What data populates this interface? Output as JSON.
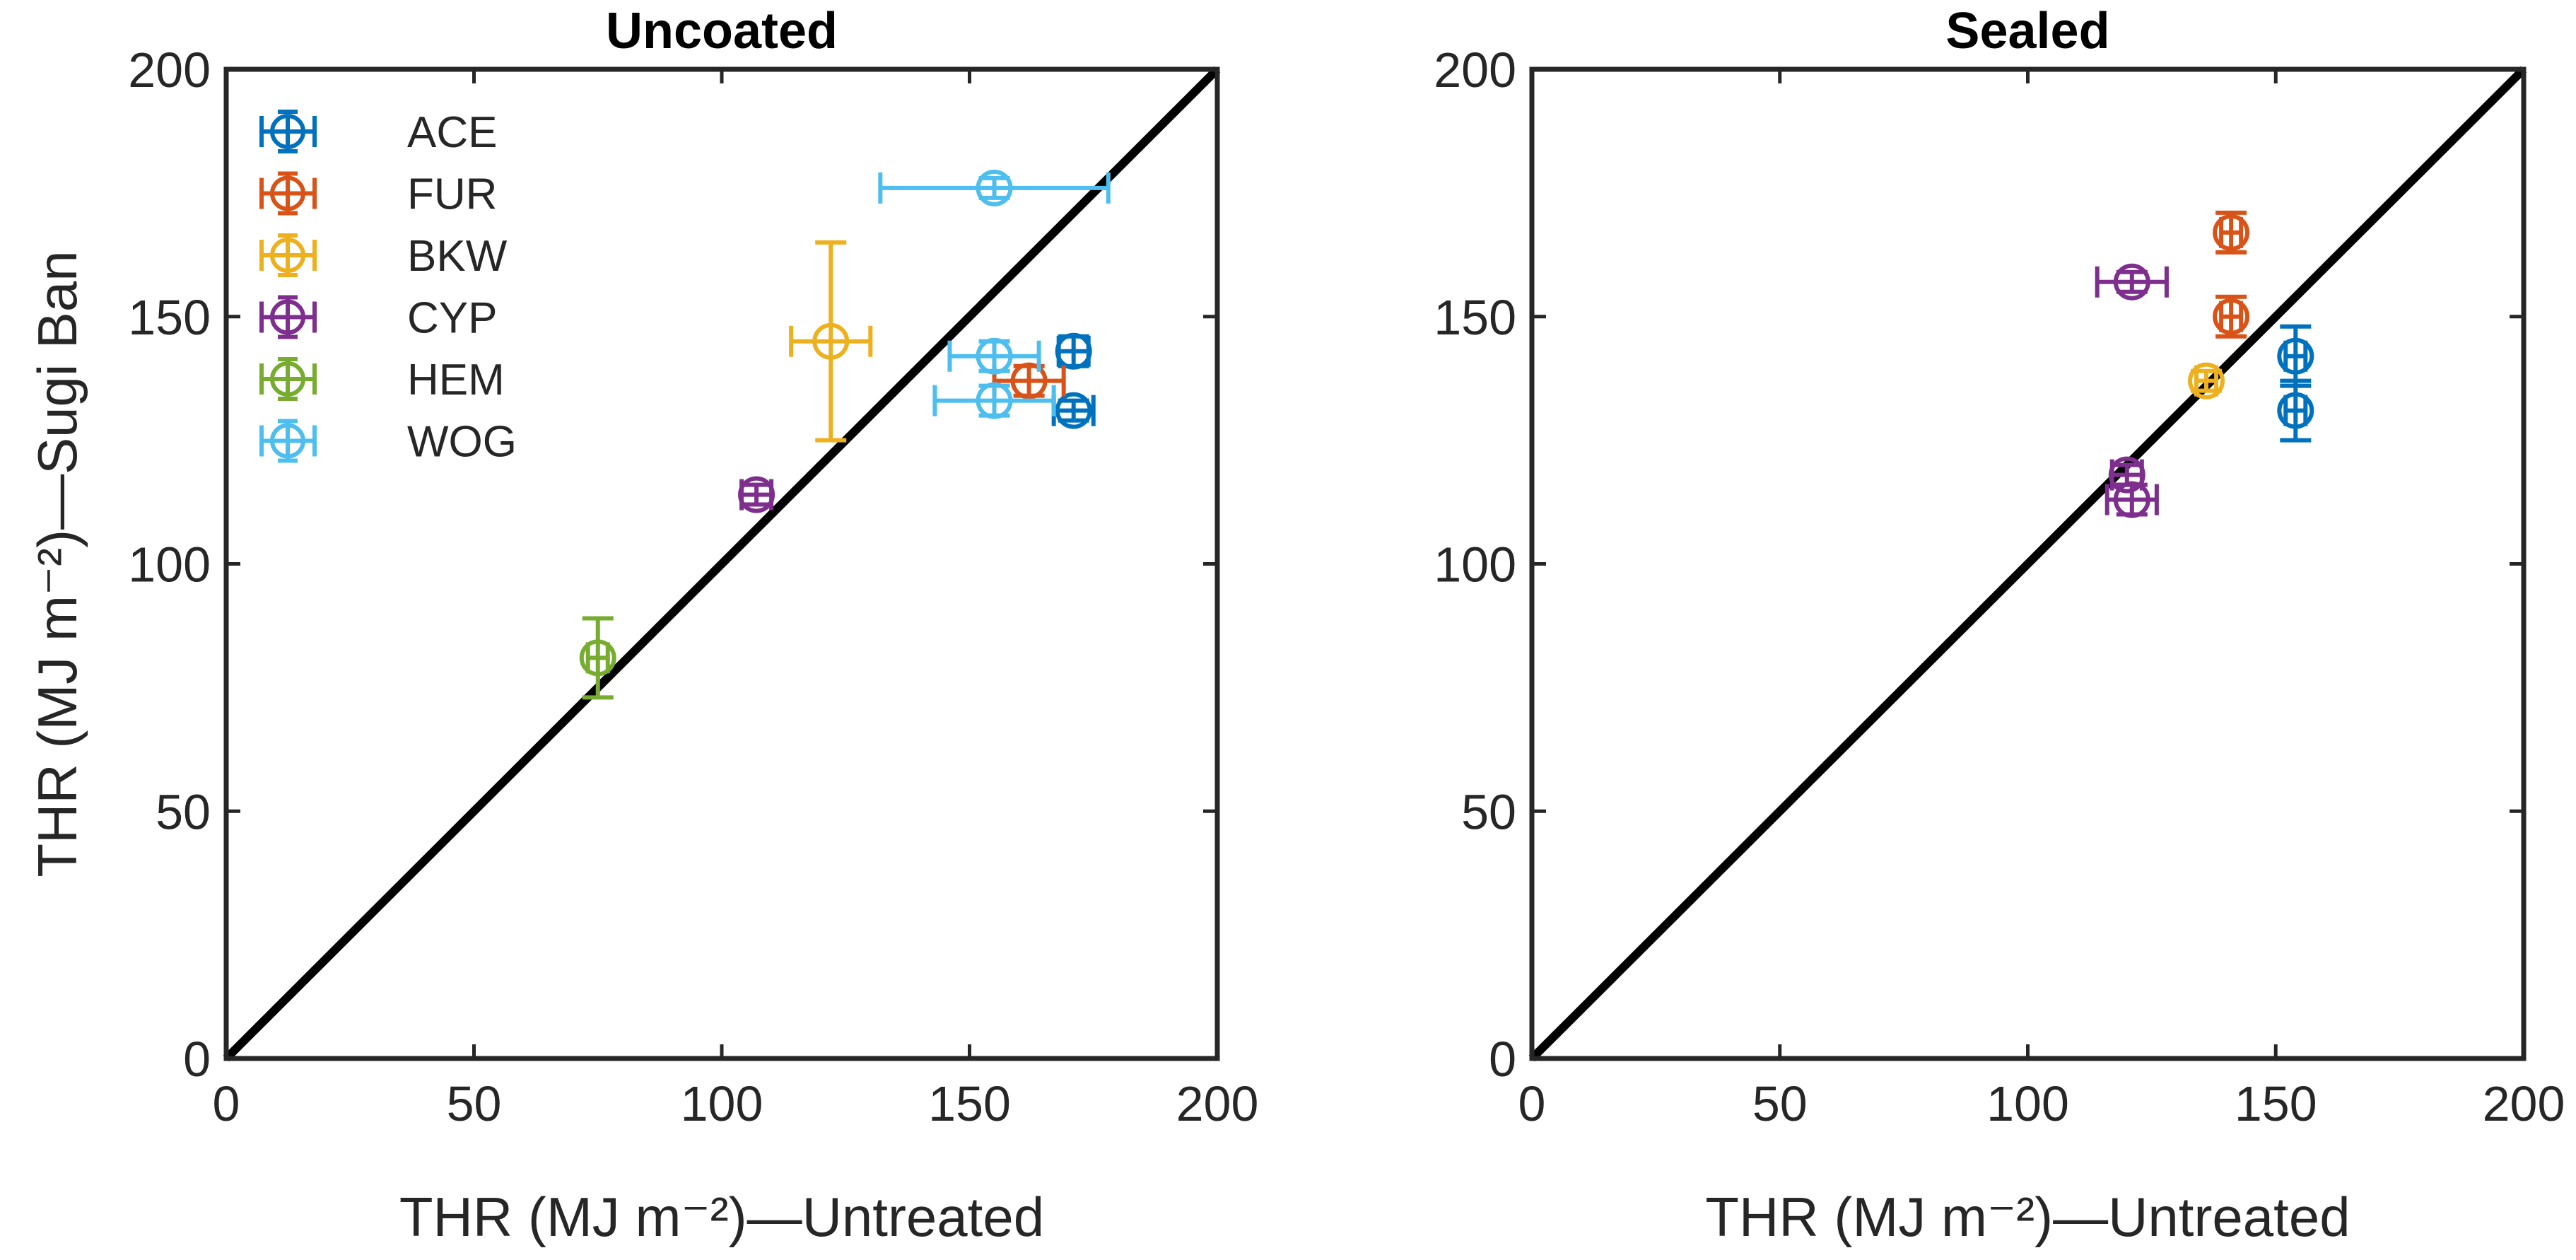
{
  "chart_data": [
    {
      "type": "scatter",
      "title": "Uncoated",
      "xlabel": "THR (MJ m⁻²)—Untreated",
      "ylabel": "THR (MJ m⁻²)—Sugi Ban",
      "xlim": [
        0,
        200
      ],
      "ylim": [
        0,
        200
      ],
      "xticks": [
        0,
        50,
        100,
        150,
        200
      ],
      "yticks": [
        0,
        50,
        100,
        150,
        200
      ],
      "reference_line": "y = x",
      "legend": {
        "placement": "top-left",
        "entries": [
          "ACE",
          "FUR",
          "BKW",
          "CYP",
          "HEM",
          "WOG"
        ]
      },
      "series": [
        {
          "name": "ACE",
          "color": "#0072BD",
          "points": [
            {
              "x": 171,
              "y": 143,
              "xerr": 3,
              "yerr": 3
            },
            {
              "x": 171,
              "y": 131,
              "xerr": 4,
              "yerr": 2
            }
          ]
        },
        {
          "name": "FUR",
          "color": "#D95319",
          "points": [
            {
              "x": 162,
              "y": 137,
              "xerr": 7,
              "yerr": 3
            }
          ]
        },
        {
          "name": "BKW",
          "color": "#EDB120",
          "points": [
            {
              "x": 122,
              "y": 145,
              "xerr": 8,
              "yerr": 20
            }
          ]
        },
        {
          "name": "CYP",
          "color": "#7E2F8E",
          "points": [
            {
              "x": 107,
              "y": 114,
              "xerr": 3,
              "yerr": 2
            }
          ]
        },
        {
          "name": "HEM",
          "color": "#77AC30",
          "points": [
            {
              "x": 75,
              "y": 81,
              "xerr": 2,
              "yerr": 8
            }
          ]
        },
        {
          "name": "WOG",
          "color": "#4DBEEE",
          "points": [
            {
              "x": 155,
              "y": 176,
              "xerr": 23,
              "yerr": 2
            },
            {
              "x": 155,
              "y": 142,
              "xerr": 9,
              "yerr": 3
            },
            {
              "x": 155,
              "y": 133,
              "xerr": 12,
              "yerr": 3
            }
          ]
        }
      ]
    },
    {
      "type": "scatter",
      "title": "Sealed",
      "xlabel": "THR (MJ m⁻²)—Untreated",
      "xlim": [
        0,
        200
      ],
      "ylim": [
        0,
        200
      ],
      "xticks": [
        0,
        50,
        100,
        150,
        200
      ],
      "yticks": [
        0,
        50,
        100,
        150,
        200
      ],
      "reference_line": "y = x",
      "series": [
        {
          "name": "ACE",
          "color": "#0072BD",
          "points": [
            {
              "x": 154,
              "y": 142,
              "xerr": 2,
              "yerr": 6
            },
            {
              "x": 154,
              "y": 131,
              "xerr": 2,
              "yerr": 6
            }
          ]
        },
        {
          "name": "FUR",
          "color": "#D95319",
          "points": [
            {
              "x": 141,
              "y": 167,
              "xerr": 2,
              "yerr": 4
            },
            {
              "x": 141,
              "y": 150,
              "xerr": 2,
              "yerr": 4
            }
          ]
        },
        {
          "name": "BKW",
          "color": "#EDB120",
          "points": [
            {
              "x": 136,
              "y": 137,
              "xerr": 2,
              "yerr": 2
            }
          ]
        },
        {
          "name": "CYP",
          "color": "#7E2F8E",
          "points": [
            {
              "x": 121,
              "y": 157,
              "xerr": 7,
              "yerr": 2
            },
            {
              "x": 120,
              "y": 118,
              "xerr": 3,
              "yerr": 2
            },
            {
              "x": 121,
              "y": 113,
              "xerr": 5,
              "yerr": 3
            }
          ]
        }
      ]
    }
  ]
}
